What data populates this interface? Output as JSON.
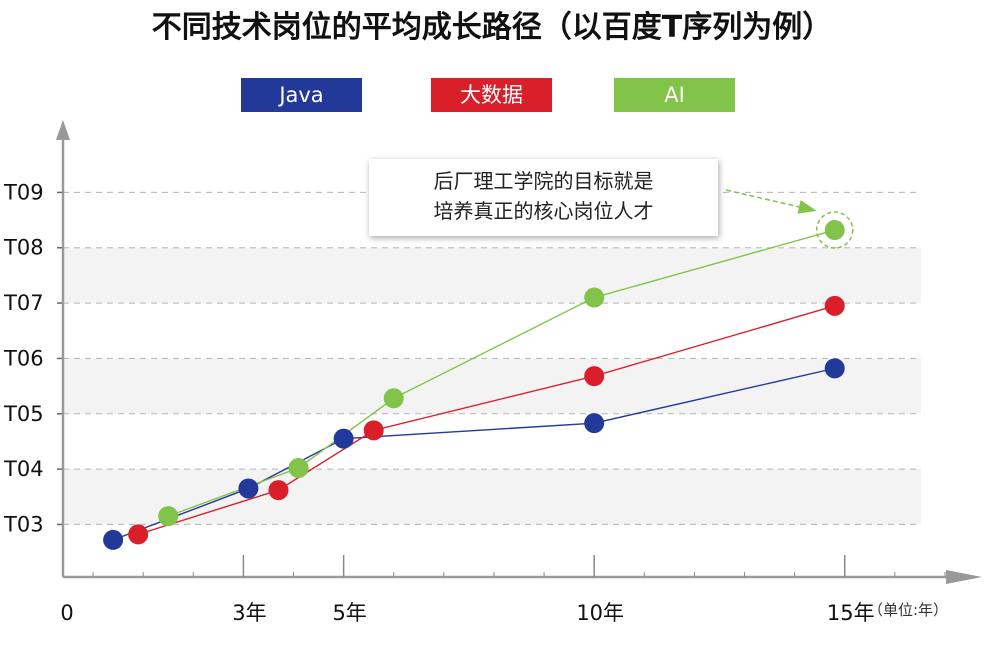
{
  "title": "不同技术岗位的平均成长路径（以百度T序列为例）",
  "legend": [
    {
      "label": "Java",
      "color": "#23399a"
    },
    {
      "label": "大数据",
      "color": "#d9202a"
    },
    {
      "label": "AI",
      "color": "#82c34a"
    }
  ],
  "annotation": {
    "line1": "后厂理工学院的目标就是",
    "line2": "培养真正的核心岗位人才"
  },
  "unit_label": "（单位:年）",
  "colors": {
    "band": "#f3f3f3",
    "axis": "#999999",
    "grid": "#b5b5b5"
  },
  "chart_data": {
    "type": "line",
    "title": "不同技术岗位的平均成长路径（以百度T序列为例）",
    "xlabel": "",
    "ylabel": "",
    "x_ticks": [
      {
        "value": 0,
        "label": "0"
      },
      {
        "value": 3,
        "label": "3年"
      },
      {
        "value": 5,
        "label": "5年"
      },
      {
        "value": 10,
        "label": "10年"
      },
      {
        "value": 15,
        "label": "15年"
      }
    ],
    "y_ticks": [
      "T03",
      "T04",
      "T05",
      "T06",
      "T07",
      "T08",
      "T09"
    ],
    "y_tick_values": [
      3,
      4,
      5,
      6,
      7,
      8,
      9
    ],
    "xlim": [
      -0.6,
      17.3
    ],
    "ylim": [
      2.05,
      10.2
    ],
    "grid": true,
    "legend_position": "top",
    "series": [
      {
        "name": "Java",
        "color": "#23399a",
        "x": [
          0.4,
          3.1,
          5.0,
          10.0,
          14.8
        ],
        "y": [
          2.72,
          3.65,
          4.55,
          4.83,
          5.82
        ]
      },
      {
        "name": "大数据",
        "color": "#d9202a",
        "x": [
          0.9,
          3.7,
          5.6,
          10.0,
          14.8
        ],
        "y": [
          2.82,
          3.62,
          4.7,
          5.68,
          6.95
        ]
      },
      {
        "name": "AI",
        "color": "#82c34a",
        "x": [
          1.5,
          4.1,
          6.0,
          10.0,
          14.8
        ],
        "y": [
          3.15,
          4.02,
          5.28,
          7.1,
          8.32
        ]
      }
    ],
    "annotation_target": {
      "series": "AI",
      "index": 4
    }
  }
}
